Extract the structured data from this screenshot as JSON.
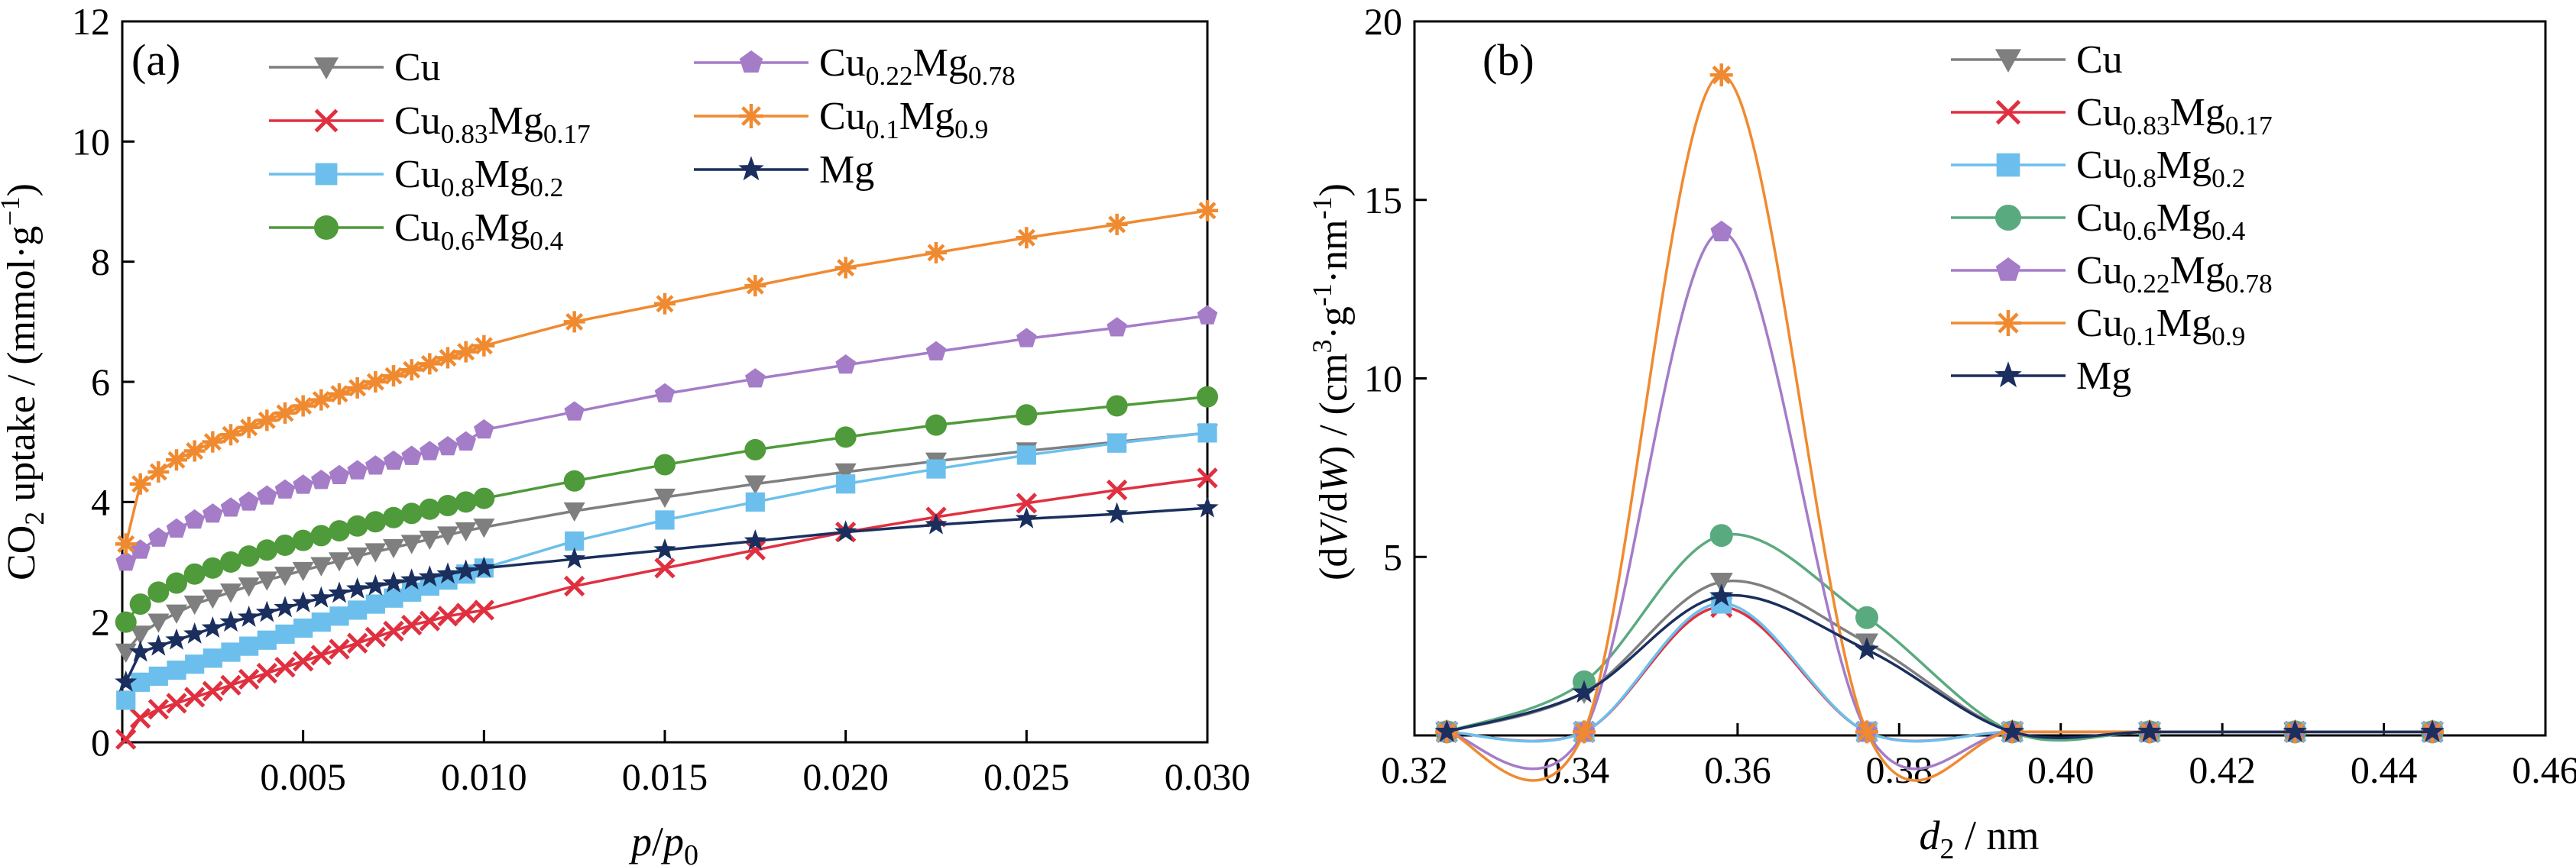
{
  "chart_data": [
    {
      "panel_label": "(a)",
      "type": "line",
      "xlabel": "p/p0",
      "ylabel": "CO2 uptake / (mmol·g−1)",
      "xlim": [
        0,
        0.03
      ],
      "ylim": [
        0,
        12
      ],
      "xticks": [
        "0.005",
        "0.010",
        "0.015",
        "0.020",
        "0.025",
        "0.030"
      ],
      "yticks": [
        "0",
        "2",
        "4",
        "6",
        "8",
        "10",
        "12"
      ],
      "grid": false,
      "legend_position": "top-left",
      "series": [
        {
          "name": "Cu",
          "marker": "triangle-down",
          "color": "#7f7f7f",
          "x": [
            0.0001,
            0.0005,
            0.001,
            0.0015,
            0.002,
            0.0025,
            0.003,
            0.0035,
            0.004,
            0.0045,
            0.005,
            0.0055,
            0.006,
            0.0065,
            0.007,
            0.0075,
            0.008,
            0.0085,
            0.009,
            0.0095,
            0.01,
            0.0125,
            0.015,
            0.0175,
            0.02,
            0.0225,
            0.025,
            0.0275,
            0.03
          ],
          "y": [
            1.5,
            1.8,
            2.0,
            2.15,
            2.3,
            2.4,
            2.5,
            2.6,
            2.7,
            2.78,
            2.86,
            2.94,
            3.02,
            3.1,
            3.17,
            3.24,
            3.31,
            3.38,
            3.45,
            3.52,
            3.58,
            3.85,
            4.08,
            4.3,
            4.5,
            4.68,
            4.85,
            5.0,
            5.15
          ]
        },
        {
          "name": "Cu0.83Mg0.17",
          "marker": "x",
          "color": "#e03040",
          "x": [
            0.0001,
            0.0005,
            0.001,
            0.0015,
            0.002,
            0.0025,
            0.003,
            0.0035,
            0.004,
            0.0045,
            0.005,
            0.0055,
            0.006,
            0.0065,
            0.007,
            0.0075,
            0.008,
            0.0085,
            0.009,
            0.0095,
            0.01,
            0.0125,
            0.015,
            0.0175,
            0.02,
            0.0225,
            0.025,
            0.0275,
            0.03
          ],
          "y": [
            0.05,
            0.4,
            0.55,
            0.65,
            0.75,
            0.85,
            0.95,
            1.05,
            1.15,
            1.25,
            1.35,
            1.45,
            1.55,
            1.65,
            1.75,
            1.85,
            1.95,
            2.02,
            2.1,
            2.15,
            2.2,
            2.6,
            2.9,
            3.2,
            3.5,
            3.75,
            3.98,
            4.2,
            4.4
          ]
        },
        {
          "name": "Cu0.8Mg0.2",
          "marker": "square",
          "color": "#6cbfec",
          "x": [
            0.0001,
            0.0005,
            0.001,
            0.0015,
            0.002,
            0.0025,
            0.003,
            0.0035,
            0.004,
            0.0045,
            0.005,
            0.0055,
            0.006,
            0.0065,
            0.007,
            0.0075,
            0.008,
            0.0085,
            0.009,
            0.0095,
            0.01,
            0.0125,
            0.015,
            0.0175,
            0.02,
            0.0225,
            0.025,
            0.0275,
            0.03
          ],
          "y": [
            0.7,
            1.0,
            1.1,
            1.2,
            1.3,
            1.4,
            1.5,
            1.6,
            1.7,
            1.8,
            1.9,
            2.0,
            2.1,
            2.2,
            2.3,
            2.4,
            2.5,
            2.6,
            2.7,
            2.8,
            2.9,
            3.35,
            3.7,
            4.0,
            4.3,
            4.55,
            4.78,
            4.98,
            5.15
          ]
        },
        {
          "name": "Cu0.6Mg0.4",
          "marker": "circle",
          "color": "#4f9a3a",
          "x": [
            0.0001,
            0.0005,
            0.001,
            0.0015,
            0.002,
            0.0025,
            0.003,
            0.0035,
            0.004,
            0.0045,
            0.005,
            0.0055,
            0.006,
            0.0065,
            0.007,
            0.0075,
            0.008,
            0.0085,
            0.009,
            0.0095,
            0.01,
            0.0125,
            0.015,
            0.0175,
            0.02,
            0.0225,
            0.025,
            0.0275,
            0.03
          ],
          "y": [
            2.0,
            2.3,
            2.5,
            2.65,
            2.8,
            2.9,
            3.0,
            3.1,
            3.2,
            3.28,
            3.36,
            3.44,
            3.52,
            3.6,
            3.67,
            3.74,
            3.81,
            3.88,
            3.94,
            4.0,
            4.06,
            4.35,
            4.62,
            4.87,
            5.08,
            5.28,
            5.45,
            5.6,
            5.75
          ]
        },
        {
          "name": "Cu0.22Mg0.78",
          "marker": "pentagon",
          "color": "#a47cc8",
          "x": [
            0.0001,
            0.0005,
            0.001,
            0.0015,
            0.002,
            0.0025,
            0.003,
            0.0035,
            0.004,
            0.0045,
            0.005,
            0.0055,
            0.006,
            0.0065,
            0.007,
            0.0075,
            0.008,
            0.0085,
            0.009,
            0.0095,
            0.01,
            0.0125,
            0.015,
            0.0175,
            0.02,
            0.0225,
            0.025,
            0.0275,
            0.03
          ],
          "y": [
            3.0,
            3.2,
            3.4,
            3.55,
            3.7,
            3.8,
            3.9,
            4.0,
            4.1,
            4.2,
            4.28,
            4.36,
            4.44,
            4.52,
            4.6,
            4.68,
            4.76,
            4.84,
            4.92,
            5.0,
            5.2,
            5.5,
            5.8,
            6.05,
            6.28,
            6.5,
            6.72,
            6.9,
            7.1
          ]
        },
        {
          "name": "Cu0.1Mg0.9",
          "marker": "asterisk",
          "color": "#f08a30",
          "x": [
            0.0001,
            0.0005,
            0.001,
            0.0015,
            0.002,
            0.0025,
            0.003,
            0.0035,
            0.004,
            0.0045,
            0.005,
            0.0055,
            0.006,
            0.0065,
            0.007,
            0.0075,
            0.008,
            0.0085,
            0.009,
            0.0095,
            0.01,
            0.0125,
            0.015,
            0.0175,
            0.02,
            0.0225,
            0.025,
            0.0275,
            0.03
          ],
          "y": [
            3.3,
            4.3,
            4.5,
            4.7,
            4.85,
            5.0,
            5.12,
            5.24,
            5.36,
            5.48,
            5.6,
            5.7,
            5.8,
            5.9,
            6.0,
            6.1,
            6.2,
            6.3,
            6.4,
            6.5,
            6.6,
            7.0,
            7.3,
            7.6,
            7.9,
            8.15,
            8.4,
            8.62,
            8.85
          ]
        },
        {
          "name": "Mg",
          "marker": "star",
          "color": "#1a2f5e",
          "x": [
            0.0001,
            0.0005,
            0.001,
            0.0015,
            0.002,
            0.0025,
            0.003,
            0.0035,
            0.004,
            0.0045,
            0.005,
            0.0055,
            0.006,
            0.0065,
            0.007,
            0.0075,
            0.008,
            0.0085,
            0.009,
            0.0095,
            0.01,
            0.0125,
            0.015,
            0.0175,
            0.02,
            0.0225,
            0.025,
            0.0275,
            0.03
          ],
          "y": [
            1.0,
            1.5,
            1.6,
            1.7,
            1.8,
            1.9,
            2.0,
            2.08,
            2.16,
            2.24,
            2.32,
            2.4,
            2.48,
            2.55,
            2.6,
            2.65,
            2.7,
            2.75,
            2.8,
            2.85,
            2.9,
            3.05,
            3.2,
            3.35,
            3.5,
            3.62,
            3.72,
            3.8,
            3.9
          ]
        }
      ]
    },
    {
      "panel_label": "(b)",
      "type": "line",
      "xlabel": "d2 / nm",
      "ylabel": "(dV/dW) / (cm3·g-1·nm-1)",
      "xlim": [
        0.32,
        0.46
      ],
      "ylim": [
        0,
        20
      ],
      "xticks": [
        "0.32",
        "0.34",
        "0.36",
        "0.38",
        "0.40",
        "0.42",
        "0.44",
        "0.46"
      ],
      "yticks": [
        "5",
        "10",
        "15",
        "20"
      ],
      "grid": false,
      "legend_position": "top-right",
      "series": [
        {
          "name": "Cu",
          "marker": "triangle-down",
          "color": "#7f7f7f",
          "x": [
            0.324,
            0.341,
            0.358,
            0.376,
            0.394,
            0.411,
            0.429,
            0.446
          ],
          "y": [
            0.1,
            1.2,
            4.3,
            2.6,
            0.1,
            0.1,
            0.1,
            0.1
          ]
        },
        {
          "name": "Cu0.83Mg0.17",
          "marker": "x",
          "color": "#e03040",
          "x": [
            0.324,
            0.341,
            0.358,
            0.376,
            0.394,
            0.411,
            0.429,
            0.446
          ],
          "y": [
            0.1,
            0.1,
            3.6,
            0.1,
            0.1,
            0.1,
            0.1,
            0.1
          ]
        },
        {
          "name": "Cu0.8Mg0.2",
          "marker": "square",
          "color": "#6cbfec",
          "x": [
            0.324,
            0.341,
            0.358,
            0.376,
            0.394,
            0.411,
            0.429,
            0.446
          ],
          "y": [
            0.1,
            0.1,
            3.7,
            0.1,
            0.1,
            0.1,
            0.1,
            0.1
          ]
        },
        {
          "name": "Cu0.6Mg0.4",
          "marker": "circle",
          "color": "#5aaa80",
          "x": [
            0.324,
            0.341,
            0.358,
            0.376,
            0.394,
            0.411,
            0.429,
            0.446
          ],
          "y": [
            0.1,
            1.5,
            5.6,
            3.3,
            0.1,
            0.1,
            0.1,
            0.1
          ]
        },
        {
          "name": "Cu0.22Mg0.78",
          "marker": "pentagon",
          "color": "#a47cc8",
          "x": [
            0.324,
            0.341,
            0.358,
            0.376,
            0.394,
            0.411,
            0.429,
            0.446
          ],
          "y": [
            0.1,
            0.1,
            14.1,
            0.1,
            0.1,
            0.1,
            0.1,
            0.1
          ]
        },
        {
          "name": "Cu0.1Mg0.9",
          "marker": "asterisk",
          "color": "#f08a30",
          "x": [
            0.324,
            0.341,
            0.358,
            0.376,
            0.394,
            0.411,
            0.429,
            0.446
          ],
          "y": [
            0.1,
            0.1,
            18.5,
            0.1,
            0.1,
            0.1,
            0.1,
            0.1
          ]
        },
        {
          "name": "Mg",
          "marker": "star",
          "color": "#1a2f5e",
          "x": [
            0.324,
            0.341,
            0.358,
            0.376,
            0.394,
            0.411,
            0.429,
            0.446
          ],
          "y": [
            0.1,
            1.2,
            3.9,
            2.4,
            0.1,
            0.1,
            0.1,
            0.1
          ]
        }
      ]
    }
  ]
}
